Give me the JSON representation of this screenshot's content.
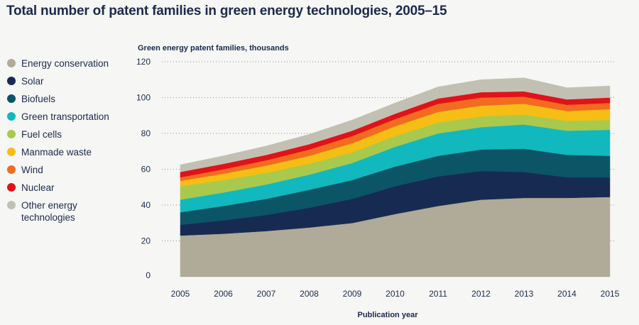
{
  "chart_data": {
    "type": "area",
    "stacked": true,
    "title": "Total number of patent families in green energy technologies, 2005–15",
    "ylabel": "Green energy patent families, thousands",
    "xlabel": "Publication year",
    "x": [
      2005,
      2006,
      2007,
      2008,
      2009,
      2010,
      2011,
      2012,
      2013,
      2014,
      2015
    ],
    "yticks": [
      0,
      20,
      40,
      60,
      80,
      100,
      120
    ],
    "ylim": [
      0,
      120
    ],
    "grid": "dotted-horizontal",
    "legend_position": "left",
    "series": [
      {
        "name": "Energy conservation",
        "color": "#b0aa98",
        "values": [
          23,
          24,
          25.5,
          27.5,
          30,
          35,
          39.5,
          43,
          44,
          44,
          44.5
        ]
      },
      {
        "name": "Solar",
        "color": "#172b52",
        "values": [
          6,
          7.5,
          9,
          11,
          13.5,
          15.5,
          16.5,
          16,
          14.5,
          11.5,
          11
        ]
      },
      {
        "name": "Biofuels",
        "color": "#0b5566",
        "values": [
          7,
          8,
          9,
          10,
          10.5,
          11,
          11.5,
          12,
          13,
          12.5,
          12
        ]
      },
      {
        "name": "Green transportation",
        "color": "#11b8bd",
        "values": [
          7,
          7.5,
          8,
          8.5,
          9.5,
          11,
          12.5,
          12.5,
          13.5,
          13.5,
          14.5
        ]
      },
      {
        "name": "Fuel cells",
        "color": "#a9c94c",
        "values": [
          7.5,
          7,
          6.5,
          6,
          6,
          6,
          6,
          6,
          5.5,
          5.5,
          5.5
        ]
      },
      {
        "name": "Manmade waste",
        "color": "#f6bd15",
        "values": [
          3,
          3.5,
          4,
          4.5,
          5,
          5.5,
          6,
          6,
          6,
          5.5,
          6
        ]
      },
      {
        "name": "Wind",
        "color": "#f26b21",
        "values": [
          2,
          2.5,
          3,
          3.5,
          4,
          4,
          4.5,
          4.5,
          4,
          3.5,
          3.5
        ]
      },
      {
        "name": "Nuclear",
        "color": "#e1121a",
        "values": [
          3,
          3,
          3,
          3,
          3,
          3,
          3,
          3,
          3,
          3,
          3
        ]
      },
      {
        "name": "Other energy technologies",
        "color": "#c2c0b3",
        "values": [
          4,
          4.5,
          5,
          5.5,
          6,
          6,
          6.5,
          7,
          7.5,
          6.5,
          6.5
        ]
      }
    ]
  }
}
